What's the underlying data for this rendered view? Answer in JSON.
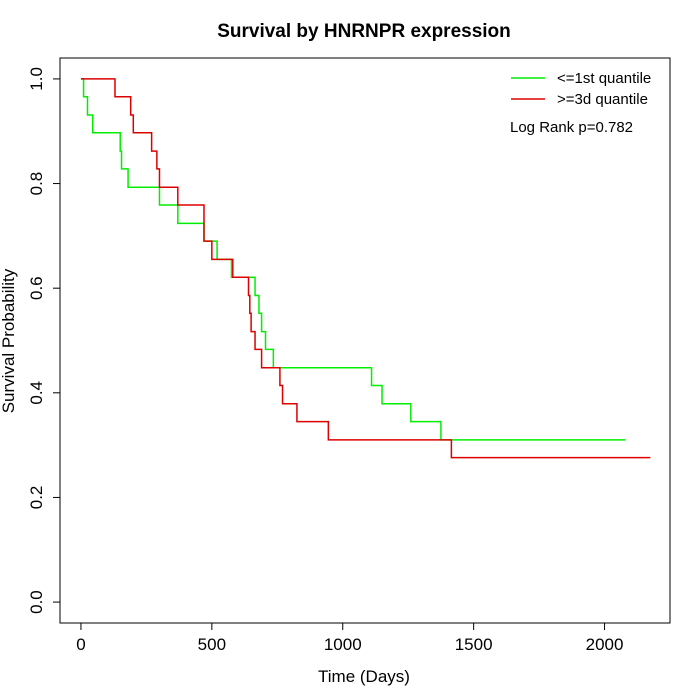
{
  "chart_data": {
    "type": "line",
    "title": "Survival by HNRNPR expression",
    "xlabel": "Time (Days)",
    "ylabel": "Survival Probability",
    "xlim": [
      -80,
      2250
    ],
    "ylim": [
      -0.04,
      1.04
    ],
    "x_ticks": [
      0,
      500,
      1000,
      1500,
      2000
    ],
    "x_tick_labels": [
      "0",
      "500",
      "1000",
      "1500",
      "2000"
    ],
    "y_ticks": [
      0.0,
      0.2,
      0.4,
      0.6,
      0.8,
      1.0
    ],
    "y_tick_labels": [
      "0.0",
      "0.2",
      "0.4",
      "0.6",
      "0.8",
      "1.0"
    ],
    "grid": false,
    "legend_position": "top-right",
    "annotation": "Log Rank p=0.782",
    "series": [
      {
        "name": "<=1st quantile",
        "color": "#00ee00",
        "step": true,
        "x": [
          0,
          10,
          25,
          45,
          150,
          155,
          180,
          300,
          370,
          470,
          520,
          575,
          665,
          680,
          690,
          705,
          735,
          745,
          1110,
          1150,
          1260,
          1375,
          2080
        ],
        "y": [
          1.0,
          0.966,
          0.931,
          0.897,
          0.862,
          0.828,
          0.793,
          0.759,
          0.724,
          0.69,
          0.655,
          0.621,
          0.586,
          0.552,
          0.517,
          0.483,
          0.448,
          0.448,
          0.414,
          0.379,
          0.345,
          0.31,
          0.31
        ]
      },
      {
        "name": ">=3d quantile",
        "color": "#dd0000",
        "step": true,
        "x": [
          0,
          130,
          190,
          200,
          270,
          290,
          300,
          370,
          470,
          500,
          580,
          640,
          645,
          650,
          665,
          690,
          760,
          770,
          825,
          945,
          1415,
          2175
        ],
        "y": [
          1.0,
          0.966,
          0.931,
          0.897,
          0.862,
          0.828,
          0.793,
          0.759,
          0.69,
          0.655,
          0.621,
          0.586,
          0.552,
          0.517,
          0.483,
          0.448,
          0.414,
          0.379,
          0.345,
          0.31,
          0.276,
          0.276
        ]
      }
    ]
  }
}
